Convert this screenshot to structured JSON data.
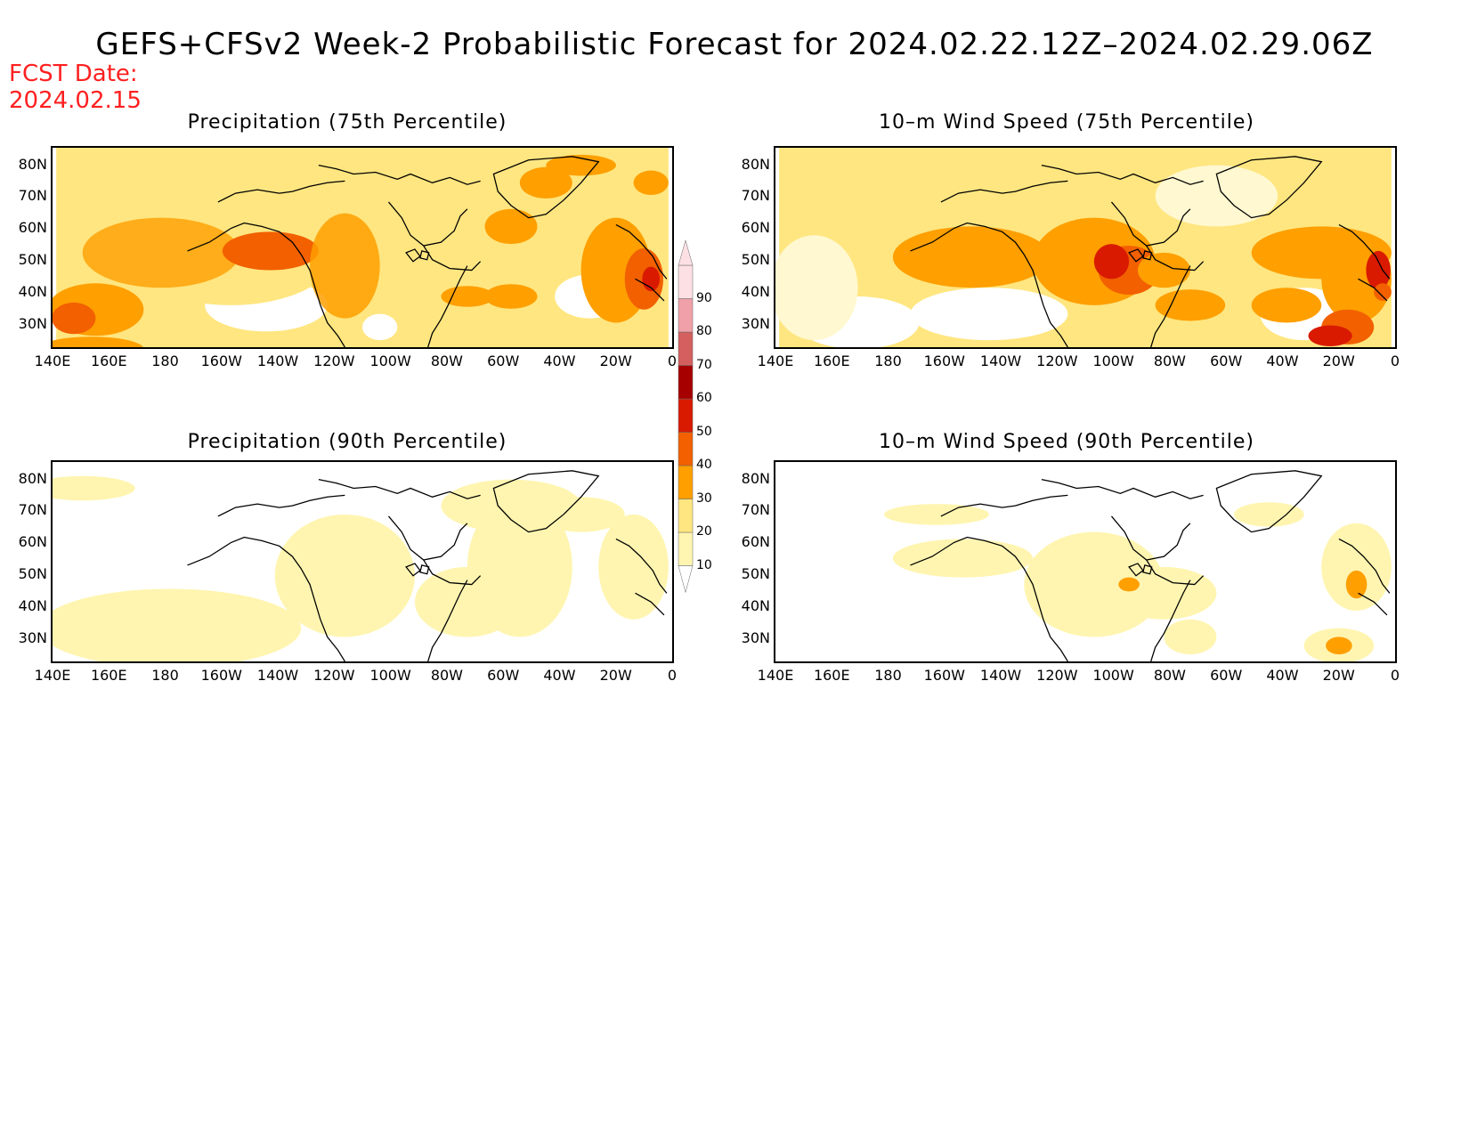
{
  "title": "GEFS+CFSv2 Week-2 Probabilistic Forecast for 2024.02.22.12Z–2024.02.29.06Z",
  "fcst_label": "FCST Date:",
  "fcst_date": "2024.02.15",
  "panels": [
    {
      "title": "Precipitation (75th Percentile)"
    },
    {
      "title": "10–m Wind Speed (75th Percentile)"
    },
    {
      "title": "Precipitation (90th Percentile)"
    },
    {
      "title": "10–m Wind Speed (90th Percentile)"
    }
  ],
  "lat_labels": [
    "80N",
    "70N",
    "60N",
    "50N",
    "40N",
    "30N"
  ],
  "lon_labels": [
    "140E",
    "160E",
    "180",
    "160W",
    "140W",
    "120W",
    "100W",
    "80W",
    "60W",
    "40W",
    "20W",
    "0"
  ],
  "colorbar": {
    "levels": [
      "10",
      "20",
      "30",
      "40",
      "50",
      "60",
      "70",
      "80",
      "90"
    ],
    "colors": [
      "#fff5b0",
      "#ffe680",
      "#ff9f00",
      "#f26000",
      "#d91a00",
      "#a60000",
      "#d45f5f",
      "#f0a0a8",
      "#fde0e4"
    ]
  }
}
